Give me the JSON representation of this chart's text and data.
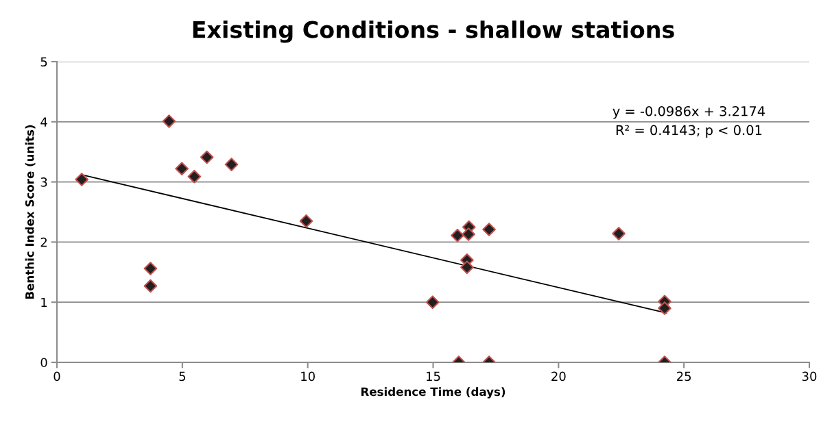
{
  "chart_data": {
    "type": "scatter",
    "title": "Existing Conditions - shallow stations",
    "xlabel": "Residence Time (days)",
    "ylabel": "Benthic Index Score (units)",
    "xlim": [
      0,
      30
    ],
    "xticks": [
      0,
      5,
      10,
      15,
      20,
      25,
      30
    ],
    "ylim": [
      0,
      5
    ],
    "yticks": [
      0,
      1,
      2,
      3,
      4,
      5
    ],
    "grid": "y",
    "legend": false,
    "series": [
      {
        "color": "#231f20",
        "marker": "diamond",
        "x": [
          0.99,
          4.47,
          4.98,
          5.48,
          5.98,
          6.96,
          3.73,
          3.73,
          9.94,
          14.98,
          15.97,
          16.43,
          16.41,
          17.23,
          22.4,
          16.35,
          16.35,
          24.23,
          24.23,
          16.02,
          17.23,
          24.23
        ],
        "values": [
          3.04,
          4.01,
          3.22,
          3.09,
          3.41,
          3.29,
          1.56,
          1.27,
          2.35,
          1.0,
          2.11,
          2.25,
          2.13,
          2.21,
          2.14,
          1.7,
          1.58,
          1.01,
          0.9,
          0,
          0,
          0
        ]
      },
      {
        "type": "line",
        "color": "#000000",
        "marker": "none",
        "line_style": "solid",
        "x": [
          0.99,
          24.3
        ],
        "values": [
          3.12,
          0.82
        ]
      }
    ],
    "annotations": [
      "y = -0.0986x + 3.2174\nR² = 0.4143; p < 0.01"
    ]
  }
}
